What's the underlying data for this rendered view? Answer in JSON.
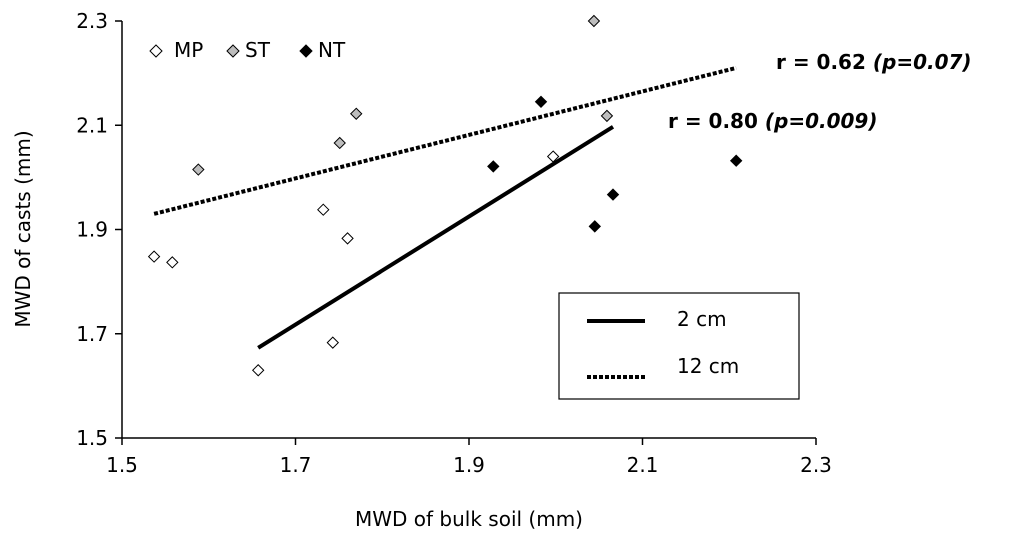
{
  "chart_data": {
    "type": "scatter",
    "title": "",
    "xlabel": "MWD of bulk soil (mm)",
    "ylabel": "MWD of casts (mm)",
    "xlim": [
      1.5,
      2.3
    ],
    "ylim": [
      1.5,
      2.3
    ],
    "x_ticks": [
      "1.5",
      "1.7",
      "1.9",
      "2.1",
      "2.3"
    ],
    "y_ticks": [
      "1.5",
      "1.7",
      "1.9",
      "2.1",
      "2.3"
    ],
    "grid": false,
    "series": [
      {
        "name": "MP",
        "marker": "diamond-open",
        "color": "#ffffff",
        "points": [
          [
            1.537,
            1.848
          ],
          [
            1.558,
            1.837
          ],
          [
            1.657,
            1.63
          ],
          [
            1.732,
            1.938
          ],
          [
            1.743,
            1.683
          ],
          [
            1.76,
            1.883
          ],
          [
            1.997,
            2.04
          ]
        ]
      },
      {
        "name": "ST",
        "marker": "diamond-gray",
        "color": "#bdbdbd",
        "points": [
          [
            1.588,
            2.015
          ],
          [
            1.751,
            2.066
          ],
          [
            1.77,
            2.122
          ],
          [
            2.044,
            2.3
          ],
          [
            2.059,
            2.118
          ]
        ]
      },
      {
        "name": "NT",
        "marker": "diamond-filled",
        "color": "#000000",
        "points": [
          [
            1.928,
            2.021
          ],
          [
            1.983,
            2.145
          ],
          [
            2.045,
            1.906
          ],
          [
            2.066,
            1.967
          ],
          [
            2.208,
            2.032
          ]
        ]
      }
    ],
    "trendlines": [
      {
        "name": "2 cm",
        "style": "solid",
        "x": [
          1.657,
          2.066
        ],
        "y": [
          1.673,
          2.097
        ]
      },
      {
        "name": "12 cm",
        "style": "dotted",
        "x": [
          1.537,
          2.208
        ],
        "y": [
          1.93,
          2.21
        ]
      }
    ],
    "annotations": [
      {
        "label": "r = 0.62 ",
        "stat": "(p=0.07)"
      },
      {
        "label": "r = 0.80 ",
        "stat": "(p=0.009)"
      }
    ],
    "legend_top": {
      "entries": [
        "MP",
        "ST",
        "NT"
      ],
      "placement": "top-left"
    },
    "legend_box": {
      "entries": [
        "2 cm",
        "12 cm"
      ],
      "placement": "bottom-right"
    }
  }
}
